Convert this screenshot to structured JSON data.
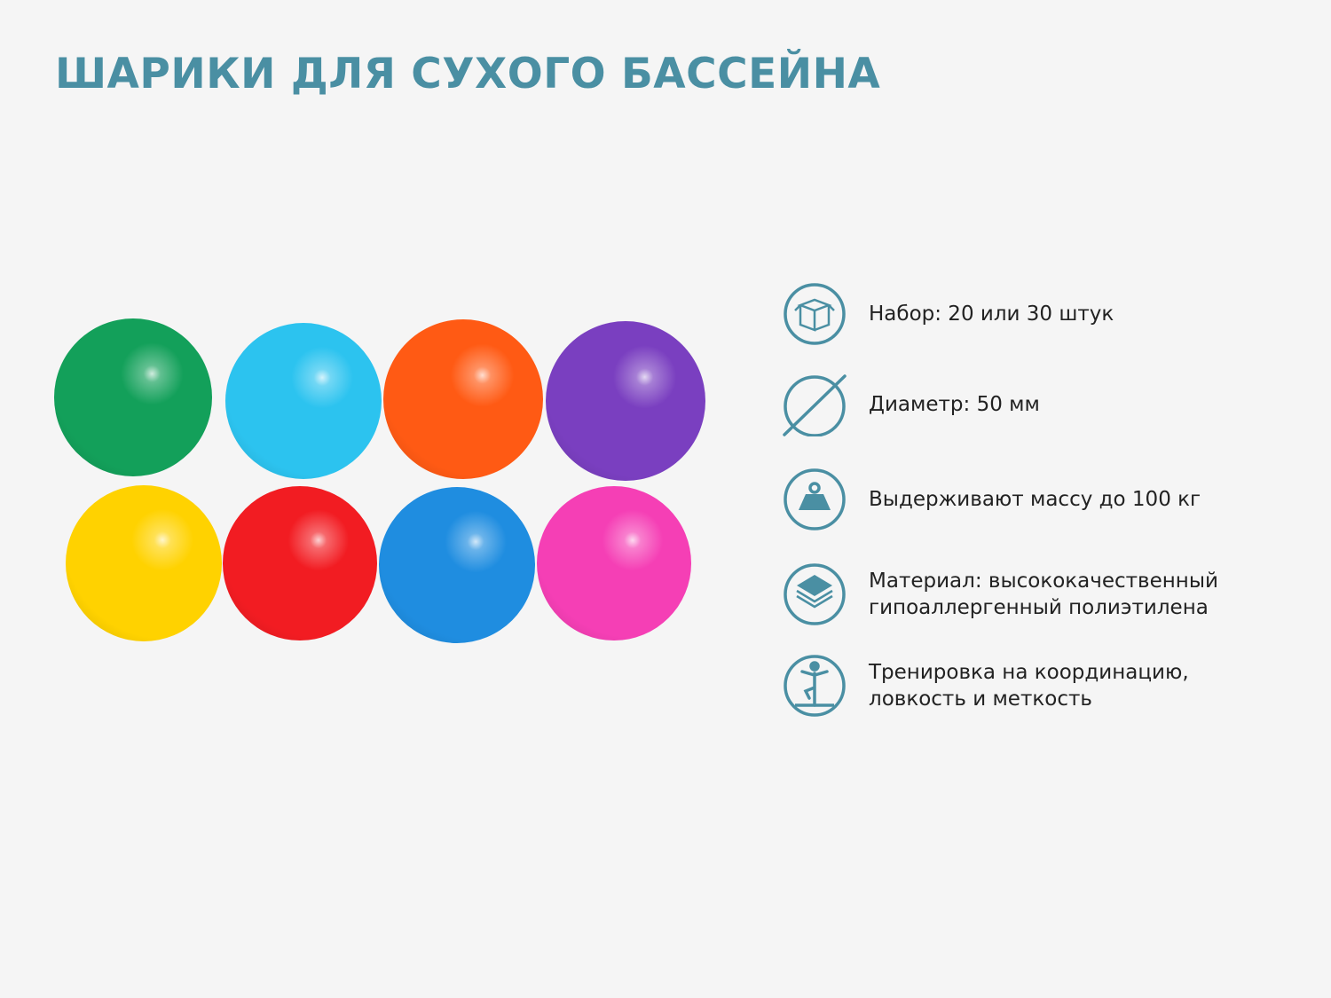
{
  "title": "ШАРИКИ ДЛЯ СУХОГО БАССЕЙНА",
  "accent_color": "#4a8fa3",
  "balls": [
    {
      "color": "#13a05a"
    },
    {
      "color": "#2cc3ef"
    },
    {
      "color": "#ff5a14"
    },
    {
      "color": "#7a3fc0"
    },
    {
      "color": "#ffd200"
    },
    {
      "color": "#f21c22"
    },
    {
      "color": "#1f8de0"
    },
    {
      "color": "#f53fb5"
    }
  ],
  "features": [
    {
      "icon": "box-icon",
      "text": "Набор:  20 или 30 штук"
    },
    {
      "icon": "diameter-icon",
      "text": "Диаметр:  50 мм"
    },
    {
      "icon": "weight-icon",
      "text": "Выдерживают массу до 100 кг"
    },
    {
      "icon": "layers-icon",
      "text": "Материал: высококачественный гипоаллергенный полиэтилена"
    },
    {
      "icon": "balance-person-icon",
      "text": "Тренировка на координацию, ловкость и меткость"
    }
  ]
}
